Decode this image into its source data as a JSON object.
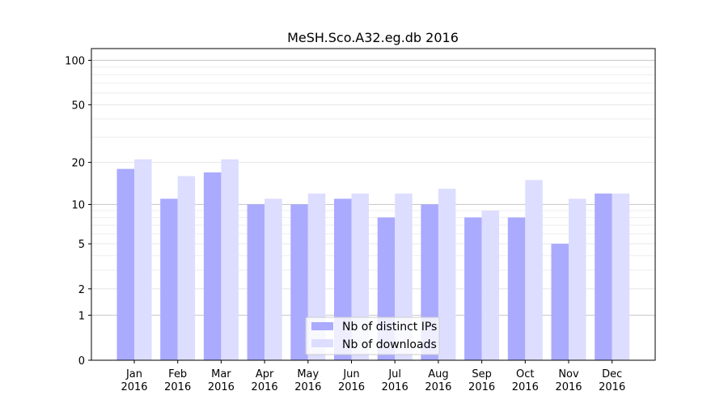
{
  "chart_data": {
    "type": "bar",
    "title": "MeSH.Sco.A32.eg.db 2016",
    "xlabel": "",
    "ylabel": "",
    "yscale": "log1p",
    "ylim": [
      0,
      120
    ],
    "yticks": [
      0,
      1,
      2,
      5,
      10,
      20,
      50,
      100
    ],
    "ytick_labels": [
      "0",
      "1",
      "2",
      "5",
      "10",
      "20",
      "50",
      "100"
    ],
    "grid": "horizontal",
    "legend_position": "bottom-center",
    "categories": [
      [
        "Jan",
        "2016"
      ],
      [
        "Feb",
        "2016"
      ],
      [
        "Mar",
        "2016"
      ],
      [
        "Apr",
        "2016"
      ],
      [
        "May",
        "2016"
      ],
      [
        "Jun",
        "2016"
      ],
      [
        "Jul",
        "2016"
      ],
      [
        "Aug",
        "2016"
      ],
      [
        "Sep",
        "2016"
      ],
      [
        "Oct",
        "2016"
      ],
      [
        "Nov",
        "2016"
      ],
      [
        "Dec",
        "2016"
      ]
    ],
    "series": [
      {
        "name": "Nb of distinct IPs",
        "color": "#aaaaff",
        "values": [
          18,
          11,
          17,
          10,
          10,
          11,
          8,
          10,
          8,
          8,
          5,
          12
        ]
      },
      {
        "name": "Nb of downloads",
        "color": "#ddddff",
        "values": [
          21,
          16,
          21,
          11,
          12,
          12,
          12,
          13,
          9,
          15,
          11,
          12
        ]
      }
    ]
  }
}
